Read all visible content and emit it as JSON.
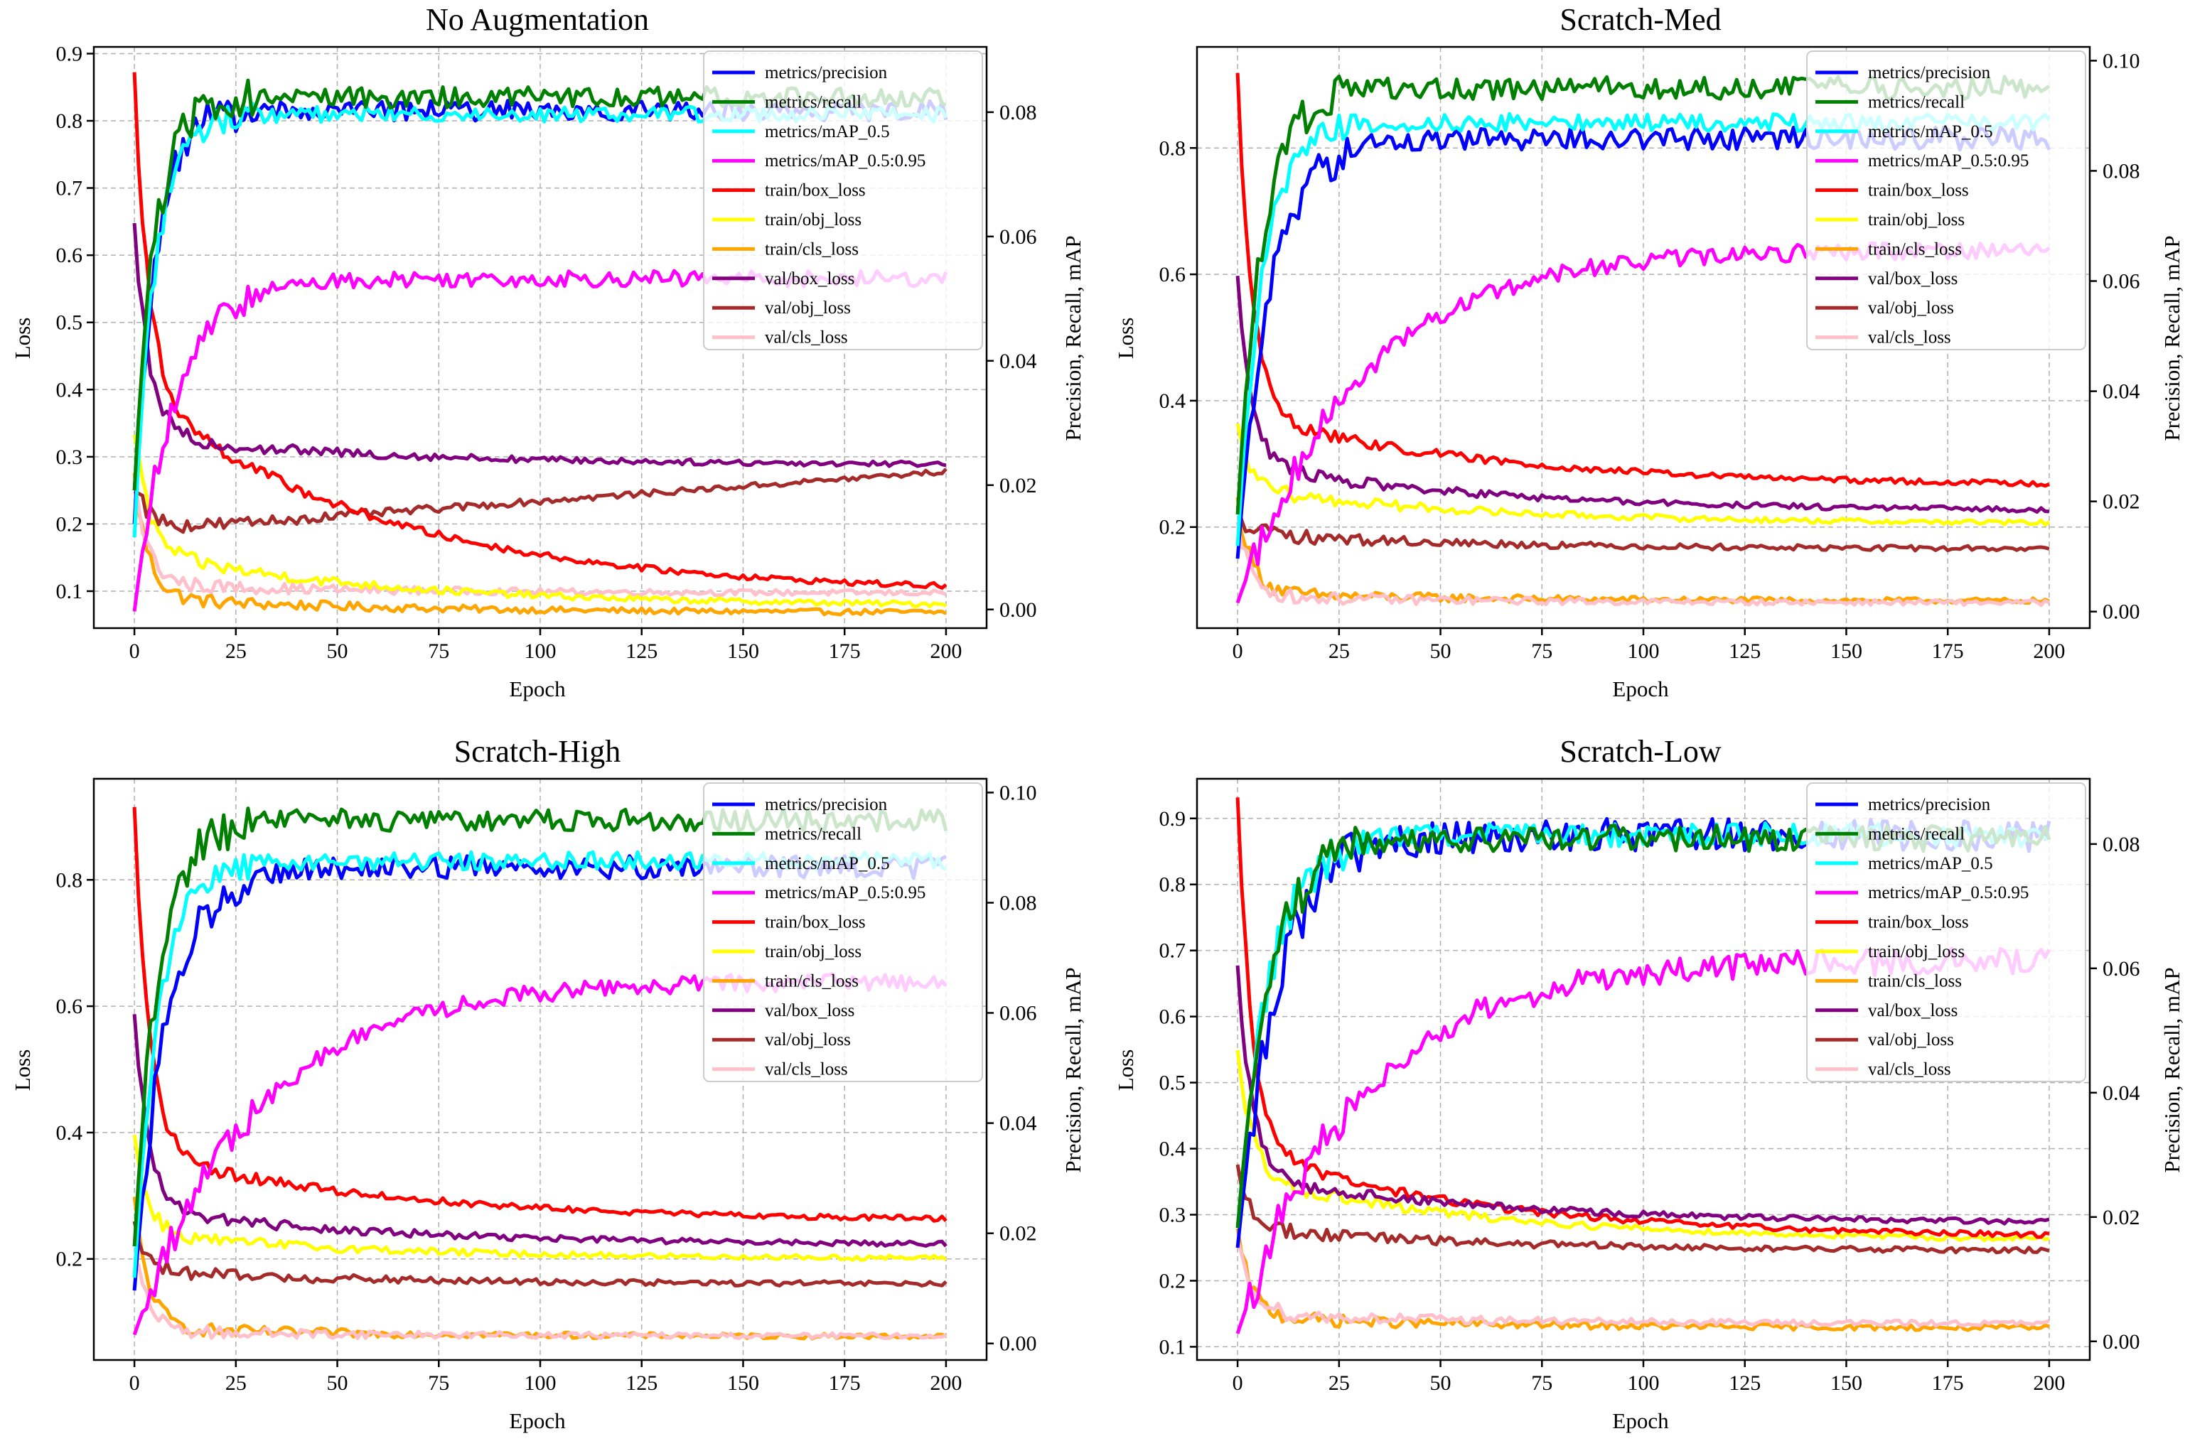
{
  "figure": {
    "series_colors": {
      "metrics/precision": "#0000ff",
      "metrics/recall": "#008000",
      "metrics/mAP_0.5": "#00ffff",
      "metrics/mAP_0.5:0.95": "#ff00ff",
      "train/box_loss": "#ff0000",
      "train/obj_loss": "#ffff00",
      "train/cls_loss": "#ffa500",
      "val/box_loss": "#800080",
      "val/obj_loss": "#a52a2a",
      "val/cls_loss": "#ffc0cb"
    },
    "legend_labels": [
      "metrics/precision",
      "metrics/recall",
      "metrics/mAP_0.5",
      "metrics/mAP_0.5:0.95",
      "train/box_loss",
      "train/obj_loss",
      "train/cls_loss",
      "val/box_loss",
      "val/obj_loss",
      "val/cls_loss"
    ]
  },
  "chart_data": [
    {
      "type": "line",
      "title": "No Augmentation",
      "xlabel": "Epoch",
      "ylabel_left": "Loss",
      "ylabel_right": "Precision, Recall, mAP",
      "xlim": [
        -10,
        210
      ],
      "ylim_left": [
        0.045,
        0.91
      ],
      "ylim_right": [
        -0.003,
        0.0905
      ],
      "xticks": [
        0,
        25,
        50,
        75,
        100,
        125,
        150,
        175,
        200
      ],
      "yticks_left": [
        0.1,
        0.2,
        0.3,
        0.4,
        0.5,
        0.6,
        0.7,
        0.8,
        0.9
      ],
      "yticks_right": [
        0.0,
        0.02,
        0.04,
        0.06,
        0.08
      ],
      "legend_position": "upper-right",
      "metrics_on_left_axis": true,
      "metrics": {
        "metrics/precision": {
          "start": 0.2,
          "plateau": 0.815,
          "tau": 5,
          "noise": 0.015
        },
        "metrics/recall": {
          "start": 0.25,
          "plateau": 0.835,
          "tau": 5,
          "noise": 0.016
        },
        "metrics/mAP_0.5": {
          "start": 0.18,
          "plateau": 0.81,
          "tau": 5,
          "noise": 0.012
        },
        "metrics/mAP_0.5:0.95": {
          "start": 0.07,
          "plateau": 0.565,
          "tau": 10,
          "noise": 0.012
        }
      },
      "losses": {
        "train/box_loss": {
          "start": 0.87,
          "mid": 0.4,
          "end": 0.097
        },
        "train/obj_loss": {
          "start": 0.34,
          "mid": 0.16,
          "end": 0.078
        },
        "train/cls_loss": {
          "start": 0.27,
          "mid": 0.09,
          "end": 0.068
        },
        "val/box_loss": {
          "start": 0.65,
          "mid": 0.33,
          "end": 0.288
        },
        "val/obj_loss": {
          "start": 0.26,
          "mid": 0.19,
          "end": 0.278
        },
        "val/cls_loss": {
          "start": 0.26,
          "mid": 0.11,
          "end": 0.097
        }
      }
    },
    {
      "type": "line",
      "title": "Scratch-Med",
      "xlabel": "Epoch",
      "ylabel_left": "Loss",
      "ylabel_right": "Precision, Recall, mAP",
      "xlim": [
        -10,
        210
      ],
      "ylim_left": [
        0.04,
        0.96
      ],
      "ylim_right": [
        -0.003,
        0.1025
      ],
      "xticks": [
        0,
        25,
        50,
        75,
        100,
        125,
        150,
        175,
        200
      ],
      "yticks_left": [
        0.2,
        0.4,
        0.6,
        0.8
      ],
      "yticks_right": [
        0.0,
        0.02,
        0.04,
        0.06,
        0.08,
        0.1
      ],
      "legend_position": "upper-right",
      "metrics_on_left_axis": true,
      "metrics": {
        "metrics/precision": {
          "start": 0.15,
          "plateau": 0.815,
          "tau": 8,
          "noise": 0.018
        },
        "metrics/recall": {
          "start": 0.22,
          "plateau": 0.895,
          "tau": 6,
          "noise": 0.018
        },
        "metrics/mAP_0.5": {
          "start": 0.17,
          "plateau": 0.84,
          "tau": 6,
          "noise": 0.014
        },
        "metrics/mAP_0.5:0.95": {
          "start": 0.08,
          "plateau": 0.64,
          "tau": 30,
          "noise": 0.014
        }
      },
      "losses": {
        "train/box_loss": {
          "start": 0.92,
          "mid": 0.38,
          "end": 0.265
        },
        "train/obj_loss": {
          "start": 0.35,
          "mid": 0.26,
          "end": 0.205
        },
        "train/cls_loss": {
          "start": 0.24,
          "mid": 0.095,
          "end": 0.083
        },
        "val/box_loss": {
          "start": 0.6,
          "mid": 0.3,
          "end": 0.225
        },
        "val/obj_loss": {
          "start": 0.22,
          "mid": 0.19,
          "end": 0.165
        },
        "val/cls_loss": {
          "start": 0.2,
          "mid": 0.09,
          "end": 0.08
        }
      }
    },
    {
      "type": "line",
      "title": "Scratch-High",
      "xlabel": "Epoch",
      "ylabel_left": "Loss",
      "ylabel_right": "Precision, Recall, mAP",
      "xlim": [
        -10,
        210
      ],
      "ylim_left": [
        0.04,
        0.96
      ],
      "ylim_right": [
        -0.003,
        0.1025
      ],
      "xticks": [
        0,
        25,
        50,
        75,
        100,
        125,
        150,
        175,
        200
      ],
      "yticks_left": [
        0.2,
        0.4,
        0.6,
        0.8
      ],
      "yticks_right": [
        0.0,
        0.02,
        0.04,
        0.06,
        0.08,
        0.1
      ],
      "legend_position": "upper-right",
      "metrics_on_left_axis": true,
      "metrics": {
        "metrics/precision": {
          "start": 0.15,
          "plateau": 0.82,
          "tau": 8,
          "noise": 0.018
        },
        "metrics/recall": {
          "start": 0.22,
          "plateau": 0.895,
          "tau": 6,
          "noise": 0.018
        },
        "metrics/mAP_0.5": {
          "start": 0.17,
          "plateau": 0.83,
          "tau": 6,
          "noise": 0.014
        },
        "metrics/mAP_0.5:0.95": {
          "start": 0.08,
          "plateau": 0.64,
          "tau": 30,
          "noise": 0.014
        }
      },
      "losses": {
        "train/box_loss": {
          "start": 0.92,
          "mid": 0.37,
          "end": 0.26
        },
        "train/obj_loss": {
          "start": 0.39,
          "mid": 0.24,
          "end": 0.2
        },
        "train/cls_loss": {
          "start": 0.29,
          "mid": 0.09,
          "end": 0.077
        },
        "val/box_loss": {
          "start": 0.59,
          "mid": 0.28,
          "end": 0.222
        },
        "val/obj_loss": {
          "start": 0.25,
          "mid": 0.18,
          "end": 0.16
        },
        "val/cls_loss": {
          "start": 0.21,
          "mid": 0.085,
          "end": 0.078
        }
      }
    },
    {
      "type": "line",
      "title": "Scratch-Low",
      "xlabel": "Epoch",
      "ylabel_left": "Loss",
      "ylabel_right": "Precision, Recall, mAP",
      "xlim": [
        -10,
        210
      ],
      "ylim_left": [
        0.08,
        0.96
      ],
      "ylim_right": [
        -0.003,
        0.0905
      ],
      "xticks": [
        0,
        25,
        50,
        75,
        100,
        125,
        150,
        175,
        200
      ],
      "yticks_left": [
        0.1,
        0.2,
        0.3,
        0.4,
        0.5,
        0.6,
        0.7,
        0.8,
        0.9
      ],
      "yticks_right": [
        0.0,
        0.02,
        0.04,
        0.06,
        0.08
      ],
      "legend_position": "upper-right",
      "metrics_on_left_axis": true,
      "metrics": {
        "metrics/precision": {
          "start": 0.25,
          "plateau": 0.875,
          "tau": 10,
          "noise": 0.025
        },
        "metrics/recall": {
          "start": 0.28,
          "plateau": 0.87,
          "tau": 8,
          "noise": 0.02
        },
        "metrics/mAP_0.5": {
          "start": 0.28,
          "plateau": 0.875,
          "tau": 8,
          "noise": 0.018
        },
        "metrics/mAP_0.5:0.95": {
          "start": 0.12,
          "plateau": 0.685,
          "tau": 30,
          "noise": 0.02
        }
      },
      "losses": {
        "train/box_loss": {
          "start": 0.94,
          "mid": 0.4,
          "end": 0.265
        },
        "train/obj_loss": {
          "start": 0.55,
          "mid": 0.36,
          "end": 0.26
        },
        "train/cls_loss": {
          "start": 0.27,
          "mid": 0.145,
          "end": 0.128
        },
        "val/box_loss": {
          "start": 0.68,
          "mid": 0.36,
          "end": 0.287
        },
        "val/obj_loss": {
          "start": 0.37,
          "mid": 0.28,
          "end": 0.245
        },
        "val/cls_loss": {
          "start": 0.27,
          "mid": 0.15,
          "end": 0.135
        }
      }
    }
  ]
}
